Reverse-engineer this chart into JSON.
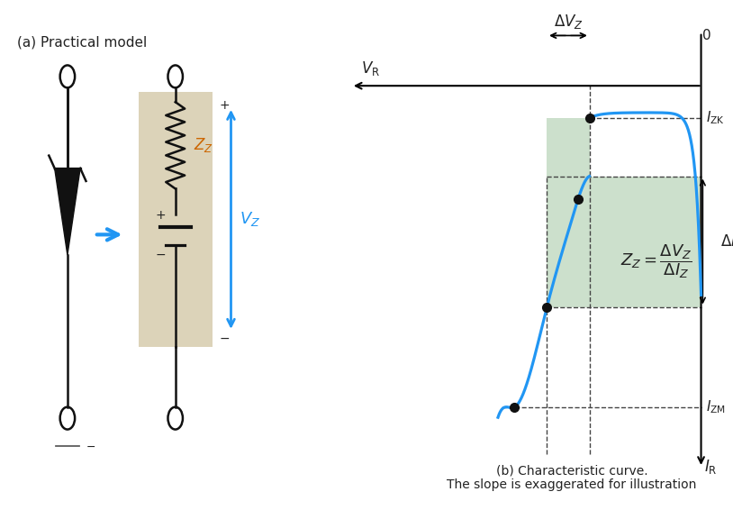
{
  "bg_color": "#ffffff",
  "curve_color": "#2196f3",
  "green_fill": "#8fbc8f",
  "green_fill_alpha": 0.45,
  "dashed_color": "#444444",
  "dot_color": "#111111",
  "arrow_color": "#2196f3",
  "text_color": "#222222",
  "zz_label_color": "#cc6600",
  "title_a": "(a) Practical model",
  "title_b": "(b) Characteristic curve.\nThe slope is exaggerated for illustration",
  "label_VR": "$V_{\\mathrm{R}}$",
  "label_0": "0",
  "label_IZK": "$I_{\\mathrm{ZK}}$",
  "label_IZM": "$I_{\\mathrm{ZM}}$",
  "label_IR": "$I_{\\mathrm{R}}$",
  "label_deltaVZ": "$\\Delta V_Z$",
  "label_deltaIZ": "$\\Delta I_Z$",
  "label_ZZ_eq": "$Z_Z = \\dfrac{\\Delta V_Z}{\\Delta I_Z}$",
  "label_VZ": "$V_Z$",
  "label_ZZ": "$Z_Z$",
  "resistor_color": "#d4c9a8",
  "circuit_line_color": "#111111",
  "figsize": [
    8.14,
    5.66
  ],
  "dpi": 100
}
